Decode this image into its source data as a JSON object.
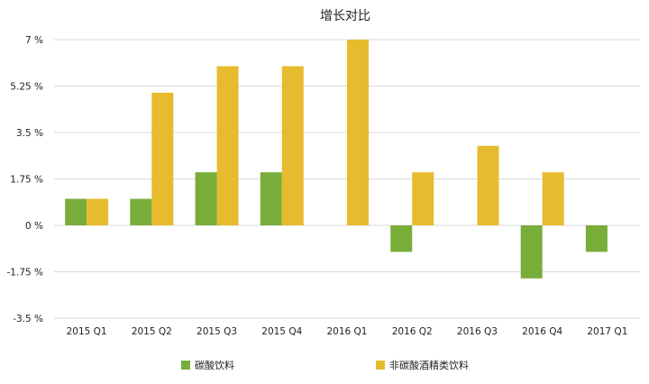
{
  "chart_data": {
    "type": "bar",
    "title": "增长对比",
    "categories": [
      "2015 Q1",
      "2015 Q2",
      "2015 Q3",
      "2015 Q4",
      "2016 Q1",
      "2016 Q2",
      "2016 Q3",
      "2016 Q4",
      "2017 Q1"
    ],
    "series": [
      {
        "name": "碳酸饮料",
        "color": "#79ad3a",
        "values": [
          1,
          1,
          2,
          2,
          0,
          -1,
          0,
          -2,
          -1
        ]
      },
      {
        "name": "非碳酸酒精类饮料",
        "color": "#e6bb2e",
        "values": [
          1,
          5,
          6,
          6,
          7,
          2,
          3,
          2,
          0
        ]
      }
    ],
    "y_ticks": [
      "7 %",
      "5.25 %",
      "3.5 %",
      "1.75 %",
      "0 %",
      "-1.75 %",
      "-3.5 %"
    ],
    "ylim": [
      -3.5,
      7
    ],
    "grid": true,
    "legend": "bottom"
  }
}
